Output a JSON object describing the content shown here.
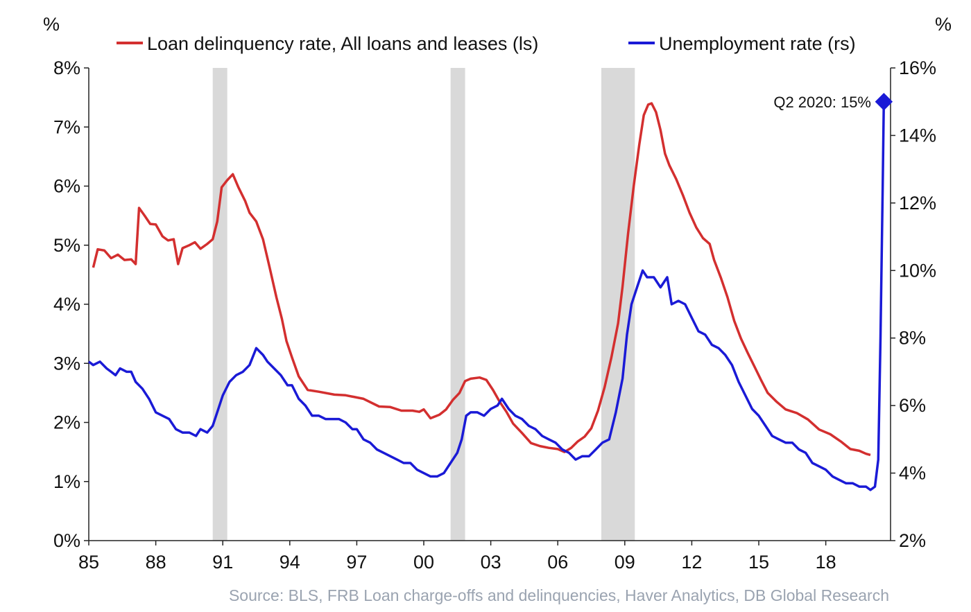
{
  "chart_data": {
    "type": "line",
    "left_axis_unit": "%",
    "right_axis_unit": "%",
    "source": "Source: BLS, FRB Loan charge-offs and delinquencies, Haver Analytics, DB Global  Research",
    "annotation": "Q2 2020: 15%",
    "left_axis": {
      "ylim": [
        0,
        8
      ],
      "ticks": [
        "0%",
        "1%",
        "2%",
        "3%",
        "4%",
        "5%",
        "6%",
        "7%",
        "8%"
      ]
    },
    "right_axis": {
      "ylim": [
        2,
        16
      ],
      "ticks": [
        "2%",
        "4%",
        "6%",
        "8%",
        "10%",
        "12%",
        "14%",
        "16%"
      ]
    },
    "x_axis": {
      "xlim": [
        1985,
        2020.9
      ],
      "ticks": [
        {
          "label": "85",
          "value": 1985
        },
        {
          "label": "88",
          "value": 1988
        },
        {
          "label": "91",
          "value": 1991
        },
        {
          "label": "94",
          "value": 1994
        },
        {
          "label": "97",
          "value": 1997
        },
        {
          "label": "00",
          "value": 2000
        },
        {
          "label": "03",
          "value": 2003
        },
        {
          "label": "06",
          "value": 2006
        },
        {
          "label": "09",
          "value": 2009
        },
        {
          "label": "12",
          "value": 2012
        },
        {
          "label": "15",
          "value": 2015
        },
        {
          "label": "18",
          "value": 2018
        }
      ]
    },
    "recessions": [
      [
        1990.55,
        1991.2
      ],
      [
        2001.2,
        2001.85
      ],
      [
        2007.95,
        2009.45
      ]
    ],
    "colors": {
      "delinquency": "#d32f2f",
      "unemployment": "#1a1ad6",
      "recession": "#d9d9d9"
    },
    "series": [
      {
        "name": "Loan delinquency rate, All loans and leases (ls)",
        "axis": "left",
        "points": [
          [
            1985.2,
            4.62
          ],
          [
            1985.4,
            4.93
          ],
          [
            1985.7,
            4.91
          ],
          [
            1986.0,
            4.78
          ],
          [
            1986.3,
            4.84
          ],
          [
            1986.6,
            4.75
          ],
          [
            1986.9,
            4.76
          ],
          [
            1987.1,
            4.68
          ],
          [
            1987.25,
            5.63
          ],
          [
            1987.5,
            5.5
          ],
          [
            1987.75,
            5.36
          ],
          [
            1988.0,
            5.35
          ],
          [
            1988.3,
            5.15
          ],
          [
            1988.55,
            5.08
          ],
          [
            1988.8,
            5.1
          ],
          [
            1989.0,
            4.68
          ],
          [
            1989.2,
            4.95
          ],
          [
            1989.5,
            5.0
          ],
          [
            1989.75,
            5.05
          ],
          [
            1990.0,
            4.94
          ],
          [
            1990.3,
            5.02
          ],
          [
            1990.55,
            5.1
          ],
          [
            1990.75,
            5.4
          ],
          [
            1990.95,
            5.98
          ],
          [
            1991.2,
            6.1
          ],
          [
            1991.45,
            6.2
          ],
          [
            1991.7,
            5.98
          ],
          [
            1992.0,
            5.75
          ],
          [
            1992.2,
            5.55
          ],
          [
            1992.5,
            5.4
          ],
          [
            1992.8,
            5.1
          ],
          [
            1993.1,
            4.62
          ],
          [
            1993.4,
            4.12
          ],
          [
            1993.65,
            3.75
          ],
          [
            1993.85,
            3.38
          ],
          [
            1994.1,
            3.1
          ],
          [
            1994.4,
            2.78
          ],
          [
            1994.8,
            2.55
          ],
          [
            1995.3,
            2.52
          ],
          [
            1996.0,
            2.47
          ],
          [
            1996.5,
            2.46
          ],
          [
            1997.3,
            2.4
          ],
          [
            1998.0,
            2.27
          ],
          [
            1998.5,
            2.26
          ],
          [
            1999.0,
            2.2
          ],
          [
            1999.5,
            2.2
          ],
          [
            1999.8,
            2.18
          ],
          [
            2000.0,
            2.22
          ],
          [
            2000.3,
            2.07
          ],
          [
            2000.7,
            2.13
          ],
          [
            2001.0,
            2.22
          ],
          [
            2001.3,
            2.38
          ],
          [
            2001.6,
            2.5
          ],
          [
            2001.85,
            2.7
          ],
          [
            2002.1,
            2.74
          ],
          [
            2002.5,
            2.76
          ],
          [
            2002.8,
            2.72
          ],
          [
            2003.1,
            2.55
          ],
          [
            2003.4,
            2.35
          ],
          [
            2003.7,
            2.18
          ],
          [
            2004.0,
            1.98
          ],
          [
            2004.4,
            1.82
          ],
          [
            2004.8,
            1.65
          ],
          [
            2005.2,
            1.6
          ],
          [
            2005.6,
            1.57
          ],
          [
            2006.0,
            1.55
          ],
          [
            2006.3,
            1.5
          ],
          [
            2006.6,
            1.57
          ],
          [
            2006.9,
            1.68
          ],
          [
            2007.2,
            1.76
          ],
          [
            2007.5,
            1.9
          ],
          [
            2007.8,
            2.2
          ],
          [
            2008.1,
            2.6
          ],
          [
            2008.4,
            3.1
          ],
          [
            2008.7,
            3.68
          ],
          [
            2008.9,
            4.3
          ],
          [
            2009.15,
            5.2
          ],
          [
            2009.4,
            6.0
          ],
          [
            2009.65,
            6.7
          ],
          [
            2009.85,
            7.2
          ],
          [
            2010.05,
            7.38
          ],
          [
            2010.2,
            7.4
          ],
          [
            2010.4,
            7.25
          ],
          [
            2010.6,
            6.95
          ],
          [
            2010.8,
            6.55
          ],
          [
            2011.0,
            6.35
          ],
          [
            2011.3,
            6.12
          ],
          [
            2011.6,
            5.85
          ],
          [
            2011.9,
            5.55
          ],
          [
            2012.2,
            5.3
          ],
          [
            2012.5,
            5.12
          ],
          [
            2012.8,
            5.02
          ],
          [
            2013.0,
            4.75
          ],
          [
            2013.3,
            4.45
          ],
          [
            2013.6,
            4.12
          ],
          [
            2013.9,
            3.72
          ],
          [
            2014.2,
            3.42
          ],
          [
            2014.5,
            3.18
          ],
          [
            2014.8,
            2.95
          ],
          [
            2015.1,
            2.72
          ],
          [
            2015.4,
            2.5
          ],
          [
            2015.8,
            2.35
          ],
          [
            2016.2,
            2.22
          ],
          [
            2016.7,
            2.16
          ],
          [
            2017.2,
            2.05
          ],
          [
            2017.7,
            1.88
          ],
          [
            2018.2,
            1.8
          ],
          [
            2018.7,
            1.67
          ],
          [
            2019.1,
            1.55
          ],
          [
            2019.5,
            1.52
          ],
          [
            2019.8,
            1.47
          ],
          [
            2020.0,
            1.45
          ]
        ]
      },
      {
        "name": "Unemployment rate (rs)",
        "axis": "right",
        "points": [
          [
            1985.0,
            7.3
          ],
          [
            1985.2,
            7.2
          ],
          [
            1985.5,
            7.3
          ],
          [
            1985.8,
            7.1
          ],
          [
            1986.0,
            7.0
          ],
          [
            1986.2,
            6.9
          ],
          [
            1986.4,
            7.1
          ],
          [
            1986.7,
            7.0
          ],
          [
            1986.9,
            7.0
          ],
          [
            1987.1,
            6.7
          ],
          [
            1987.4,
            6.5
          ],
          [
            1987.7,
            6.2
          ],
          [
            1988.0,
            5.8
          ],
          [
            1988.3,
            5.7
          ],
          [
            1988.6,
            5.6
          ],
          [
            1988.9,
            5.3
          ],
          [
            1989.2,
            5.2
          ],
          [
            1989.5,
            5.2
          ],
          [
            1989.8,
            5.1
          ],
          [
            1990.0,
            5.3
          ],
          [
            1990.3,
            5.2
          ],
          [
            1990.55,
            5.4
          ],
          [
            1990.8,
            5.9
          ],
          [
            1991.0,
            6.3
          ],
          [
            1991.3,
            6.7
          ],
          [
            1991.6,
            6.9
          ],
          [
            1991.9,
            7.0
          ],
          [
            1992.2,
            7.2
          ],
          [
            1992.5,
            7.7
          ],
          [
            1992.8,
            7.5
          ],
          [
            1993.0,
            7.3
          ],
          [
            1993.3,
            7.1
          ],
          [
            1993.6,
            6.9
          ],
          [
            1993.9,
            6.6
          ],
          [
            1994.1,
            6.6
          ],
          [
            1994.4,
            6.2
          ],
          [
            1994.7,
            6.0
          ],
          [
            1995.0,
            5.7
          ],
          [
            1995.3,
            5.7
          ],
          [
            1995.6,
            5.6
          ],
          [
            1995.9,
            5.6
          ],
          [
            1996.2,
            5.6
          ],
          [
            1996.5,
            5.5
          ],
          [
            1996.8,
            5.3
          ],
          [
            1997.0,
            5.3
          ],
          [
            1997.3,
            5.0
          ],
          [
            1997.6,
            4.9
          ],
          [
            1997.9,
            4.7
          ],
          [
            1998.2,
            4.6
          ],
          [
            1998.5,
            4.5
          ],
          [
            1998.8,
            4.4
          ],
          [
            1999.1,
            4.3
          ],
          [
            1999.4,
            4.3
          ],
          [
            1999.7,
            4.1
          ],
          [
            2000.0,
            4.0
          ],
          [
            2000.3,
            3.9
          ],
          [
            2000.6,
            3.9
          ],
          [
            2000.9,
            4.0
          ],
          [
            2001.2,
            4.3
          ],
          [
            2001.5,
            4.6
          ],
          [
            2001.7,
            5.0
          ],
          [
            2001.9,
            5.7
          ],
          [
            2002.1,
            5.8
          ],
          [
            2002.4,
            5.8
          ],
          [
            2002.7,
            5.7
          ],
          [
            2003.0,
            5.9
          ],
          [
            2003.3,
            6.0
          ],
          [
            2003.5,
            6.2
          ],
          [
            2003.8,
            5.9
          ],
          [
            2004.1,
            5.7
          ],
          [
            2004.4,
            5.6
          ],
          [
            2004.7,
            5.4
          ],
          [
            2005.0,
            5.3
          ],
          [
            2005.3,
            5.1
          ],
          [
            2005.6,
            5.0
          ],
          [
            2005.9,
            4.9
          ],
          [
            2006.2,
            4.7
          ],
          [
            2006.5,
            4.6
          ],
          [
            2006.8,
            4.4
          ],
          [
            2007.1,
            4.5
          ],
          [
            2007.4,
            4.5
          ],
          [
            2007.7,
            4.7
          ],
          [
            2008.0,
            4.9
          ],
          [
            2008.3,
            5.0
          ],
          [
            2008.6,
            5.8
          ],
          [
            2008.9,
            6.8
          ],
          [
            2009.1,
            8.1
          ],
          [
            2009.3,
            9.0
          ],
          [
            2009.55,
            9.5
          ],
          [
            2009.8,
            10.0
          ],
          [
            2010.0,
            9.8
          ],
          [
            2010.3,
            9.8
          ],
          [
            2010.6,
            9.5
          ],
          [
            2010.9,
            9.8
          ],
          [
            2011.1,
            9.0
          ],
          [
            2011.4,
            9.1
          ],
          [
            2011.7,
            9.0
          ],
          [
            2012.0,
            8.6
          ],
          [
            2012.3,
            8.2
          ],
          [
            2012.6,
            8.1
          ],
          [
            2012.9,
            7.8
          ],
          [
            2013.2,
            7.7
          ],
          [
            2013.5,
            7.5
          ],
          [
            2013.8,
            7.2
          ],
          [
            2014.1,
            6.7
          ],
          [
            2014.4,
            6.3
          ],
          [
            2014.7,
            5.9
          ],
          [
            2015.0,
            5.7
          ],
          [
            2015.3,
            5.4
          ],
          [
            2015.6,
            5.1
          ],
          [
            2015.9,
            5.0
          ],
          [
            2016.2,
            4.9
          ],
          [
            2016.5,
            4.9
          ],
          [
            2016.8,
            4.7
          ],
          [
            2017.1,
            4.6
          ],
          [
            2017.4,
            4.3
          ],
          [
            2017.7,
            4.2
          ],
          [
            2018.0,
            4.1
          ],
          [
            2018.3,
            3.9
          ],
          [
            2018.6,
            3.8
          ],
          [
            2018.9,
            3.7
          ],
          [
            2019.2,
            3.7
          ],
          [
            2019.5,
            3.6
          ],
          [
            2019.8,
            3.6
          ],
          [
            2020.0,
            3.5
          ],
          [
            2020.2,
            3.6
          ],
          [
            2020.35,
            4.4
          ],
          [
            2020.45,
            8.0
          ],
          [
            2020.55,
            12.5
          ],
          [
            2020.6,
            15.0
          ]
        ]
      }
    ],
    "highlight_point": {
      "x": 2020.6,
      "y": 15.0,
      "axis": "right"
    }
  }
}
